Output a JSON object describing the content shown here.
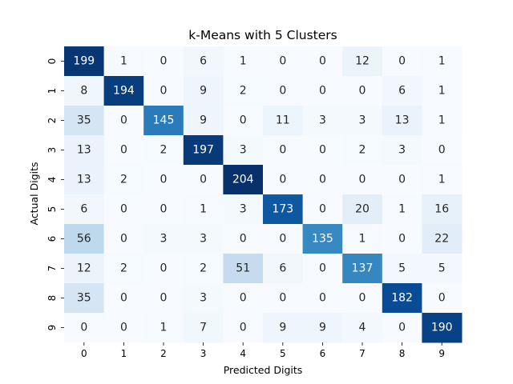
{
  "chart_data": {
    "type": "heatmap",
    "title": "k-Means with 5 Clusters",
    "xlabel": "Predicted Digits",
    "ylabel": "Actual Digits",
    "x_categories": [
      "0",
      "1",
      "2",
      "3",
      "4",
      "5",
      "6",
      "7",
      "8",
      "9"
    ],
    "y_categories": [
      "0",
      "1",
      "2",
      "3",
      "4",
      "5",
      "6",
      "7",
      "8",
      "9"
    ],
    "values": [
      [
        199,
        1,
        0,
        6,
        1,
        0,
        0,
        12,
        0,
        1
      ],
      [
        8,
        194,
        0,
        9,
        2,
        0,
        0,
        0,
        6,
        1
      ],
      [
        35,
        0,
        145,
        9,
        0,
        11,
        3,
        3,
        13,
        1
      ],
      [
        13,
        0,
        2,
        197,
        3,
        0,
        0,
        2,
        3,
        0
      ],
      [
        13,
        2,
        0,
        0,
        204,
        0,
        0,
        0,
        0,
        1
      ],
      [
        6,
        0,
        0,
        1,
        3,
        173,
        0,
        20,
        1,
        16
      ],
      [
        56,
        0,
        3,
        3,
        0,
        0,
        135,
        1,
        0,
        22
      ],
      [
        12,
        2,
        0,
        2,
        51,
        6,
        0,
        137,
        5,
        5
      ],
      [
        35,
        0,
        0,
        3,
        0,
        0,
        0,
        0,
        182,
        0
      ],
      [
        0,
        0,
        1,
        7,
        0,
        9,
        9,
        4,
        0,
        190
      ]
    ],
    "colormap": "Blues",
    "colorbar": false,
    "grid": false
  }
}
